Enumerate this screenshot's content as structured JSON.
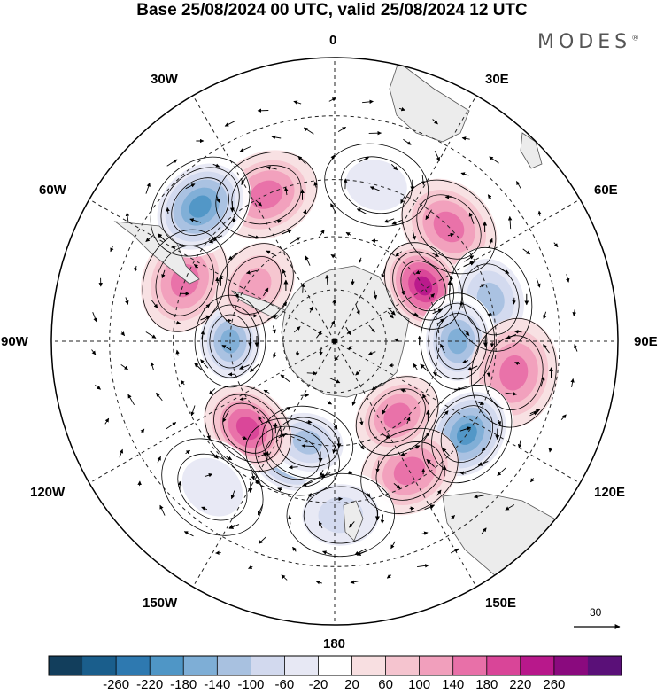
{
  "title": "Base 25/08/2024 00 UTC, valid 25/08/2024 12 UTC",
  "brand": "MODES",
  "brand_mark": "®",
  "longitude_labels": [
    {
      "id": "0",
      "text": "0"
    },
    {
      "id": "30E",
      "text": "30E"
    },
    {
      "id": "60E",
      "text": "60E"
    },
    {
      "id": "90E",
      "text": "90E"
    },
    {
      "id": "120E",
      "text": "120E"
    },
    {
      "id": "150E",
      "text": "150E"
    },
    {
      "id": "180",
      "text": "180"
    },
    {
      "id": "150W",
      "text": "150W"
    },
    {
      "id": "120W",
      "text": "120W"
    },
    {
      "id": "90W",
      "text": "90W"
    },
    {
      "id": "60W",
      "text": "60W"
    },
    {
      "id": "30W",
      "text": "30W"
    }
  ],
  "reference_vector": "30",
  "colorbar": {
    "labels": [
      "-260",
      "-220",
      "-180",
      "-140",
      "-100",
      "-60",
      "-20",
      "20",
      "60",
      "100",
      "140",
      "180",
      "220",
      "260"
    ],
    "colors": [
      "#123e5c",
      "#1a5e8c",
      "#2e79b0",
      "#4f96c6",
      "#7eaed6",
      "#a8c1e0",
      "#d2d9ee",
      "#e7e8f4",
      "#ffffff",
      "#f8dfe1",
      "#f5c4cf",
      "#f19fbc",
      "#e870a8",
      "#d94598",
      "#b8188b",
      "#8a0a7e",
      "#5a1078"
    ]
  },
  "map": {
    "projection": "south polar stereographic",
    "continent_color": "#ececec",
    "anomaly_centres": [
      {
        "lon": -160,
        "lat": -55,
        "sign": "neg",
        "value": -200
      },
      {
        "lon": -25,
        "lat": -45,
        "sign": "pos",
        "value": 140
      },
      {
        "lon": 15,
        "lat": -45,
        "sign": "neg",
        "value": -60
      },
      {
        "lon": 45,
        "lat": -45,
        "sign": "pos",
        "value": 140
      },
      {
        "lon": 58,
        "lat": -60,
        "sign": "pos",
        "value": 220
      },
      {
        "lon": 75,
        "lat": -45,
        "sign": "neg",
        "value": -140
      },
      {
        "lon": 90,
        "lat": -55,
        "sign": "neg",
        "value": -180
      },
      {
        "lon": 100,
        "lat": -40,
        "sign": "pos",
        "value": 140
      },
      {
        "lon": 125,
        "lat": -45,
        "sign": "neg",
        "value": -200
      },
      {
        "lon": 150,
        "lat": -48,
        "sign": "pos",
        "value": 140
      },
      {
        "lon": 178,
        "lat": -42,
        "sign": "neg",
        "value": -100
      },
      {
        "lon": 140,
        "lat": -62,
        "sign": "pos",
        "value": 140
      },
      {
        "lon": -165,
        "lat": -60,
        "sign": "neg",
        "value": -140
      },
      {
        "lon": -135,
        "lat": -55,
        "sign": "pos",
        "value": 180
      },
      {
        "lon": -140,
        "lat": -38,
        "sign": "neg",
        "value": -60
      },
      {
        "lon": -90,
        "lat": -60,
        "sign": "neg",
        "value": -180
      },
      {
        "lon": -68,
        "lat": -45,
        "sign": "pos",
        "value": 140
      },
      {
        "lon": -55,
        "lat": -62,
        "sign": "pos",
        "value": 100
      },
      {
        "lon": -45,
        "lat": -38,
        "sign": "neg",
        "value": -200
      }
    ]
  }
}
